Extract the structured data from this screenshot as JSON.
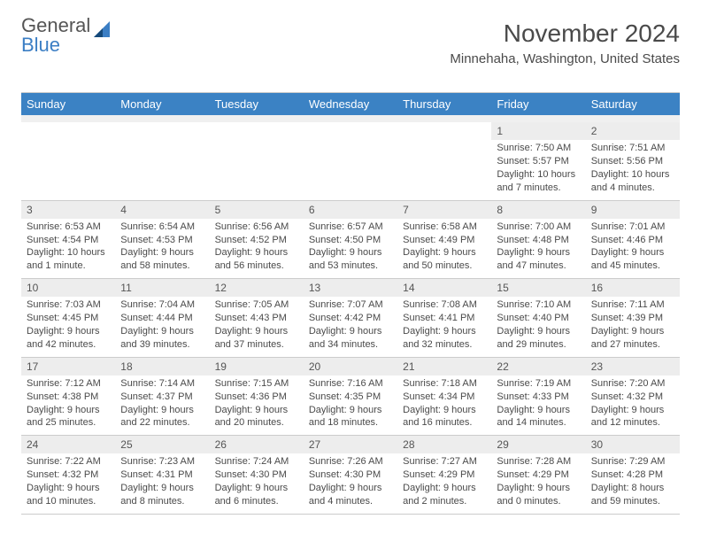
{
  "logo": {
    "word1": "General",
    "word2": "Blue"
  },
  "header": {
    "title": "November 2024",
    "location": "Minnehaha, Washington, United States"
  },
  "colors": {
    "header_bg": "#3b82c4",
    "header_text": "#ffffff",
    "daynum_bg": "#ededed",
    "border": "#cccccc",
    "text": "#4a4a4a",
    "logo_gray": "#555555",
    "logo_blue": "#3b7ec4"
  },
  "weekdays": [
    "Sunday",
    "Monday",
    "Tuesday",
    "Wednesday",
    "Thursday",
    "Friday",
    "Saturday"
  ],
  "weeks": [
    [
      null,
      null,
      null,
      null,
      null,
      {
        "n": "1",
        "sr": "7:50 AM",
        "ss": "5:57 PM",
        "dl": "10 hours and 7 minutes."
      },
      {
        "n": "2",
        "sr": "7:51 AM",
        "ss": "5:56 PM",
        "dl": "10 hours and 4 minutes."
      }
    ],
    [
      {
        "n": "3",
        "sr": "6:53 AM",
        "ss": "4:54 PM",
        "dl": "10 hours and 1 minute."
      },
      {
        "n": "4",
        "sr": "6:54 AM",
        "ss": "4:53 PM",
        "dl": "9 hours and 58 minutes."
      },
      {
        "n": "5",
        "sr": "6:56 AM",
        "ss": "4:52 PM",
        "dl": "9 hours and 56 minutes."
      },
      {
        "n": "6",
        "sr": "6:57 AM",
        "ss": "4:50 PM",
        "dl": "9 hours and 53 minutes."
      },
      {
        "n": "7",
        "sr": "6:58 AM",
        "ss": "4:49 PM",
        "dl": "9 hours and 50 minutes."
      },
      {
        "n": "8",
        "sr": "7:00 AM",
        "ss": "4:48 PM",
        "dl": "9 hours and 47 minutes."
      },
      {
        "n": "9",
        "sr": "7:01 AM",
        "ss": "4:46 PM",
        "dl": "9 hours and 45 minutes."
      }
    ],
    [
      {
        "n": "10",
        "sr": "7:03 AM",
        "ss": "4:45 PM",
        "dl": "9 hours and 42 minutes."
      },
      {
        "n": "11",
        "sr": "7:04 AM",
        "ss": "4:44 PM",
        "dl": "9 hours and 39 minutes."
      },
      {
        "n": "12",
        "sr": "7:05 AM",
        "ss": "4:43 PM",
        "dl": "9 hours and 37 minutes."
      },
      {
        "n": "13",
        "sr": "7:07 AM",
        "ss": "4:42 PM",
        "dl": "9 hours and 34 minutes."
      },
      {
        "n": "14",
        "sr": "7:08 AM",
        "ss": "4:41 PM",
        "dl": "9 hours and 32 minutes."
      },
      {
        "n": "15",
        "sr": "7:10 AM",
        "ss": "4:40 PM",
        "dl": "9 hours and 29 minutes."
      },
      {
        "n": "16",
        "sr": "7:11 AM",
        "ss": "4:39 PM",
        "dl": "9 hours and 27 minutes."
      }
    ],
    [
      {
        "n": "17",
        "sr": "7:12 AM",
        "ss": "4:38 PM",
        "dl": "9 hours and 25 minutes."
      },
      {
        "n": "18",
        "sr": "7:14 AM",
        "ss": "4:37 PM",
        "dl": "9 hours and 22 minutes."
      },
      {
        "n": "19",
        "sr": "7:15 AM",
        "ss": "4:36 PM",
        "dl": "9 hours and 20 minutes."
      },
      {
        "n": "20",
        "sr": "7:16 AM",
        "ss": "4:35 PM",
        "dl": "9 hours and 18 minutes."
      },
      {
        "n": "21",
        "sr": "7:18 AM",
        "ss": "4:34 PM",
        "dl": "9 hours and 16 minutes."
      },
      {
        "n": "22",
        "sr": "7:19 AM",
        "ss": "4:33 PM",
        "dl": "9 hours and 14 minutes."
      },
      {
        "n": "23",
        "sr": "7:20 AM",
        "ss": "4:32 PM",
        "dl": "9 hours and 12 minutes."
      }
    ],
    [
      {
        "n": "24",
        "sr": "7:22 AM",
        "ss": "4:32 PM",
        "dl": "9 hours and 10 minutes."
      },
      {
        "n": "25",
        "sr": "7:23 AM",
        "ss": "4:31 PM",
        "dl": "9 hours and 8 minutes."
      },
      {
        "n": "26",
        "sr": "7:24 AM",
        "ss": "4:30 PM",
        "dl": "9 hours and 6 minutes."
      },
      {
        "n": "27",
        "sr": "7:26 AM",
        "ss": "4:30 PM",
        "dl": "9 hours and 4 minutes."
      },
      {
        "n": "28",
        "sr": "7:27 AM",
        "ss": "4:29 PM",
        "dl": "9 hours and 2 minutes."
      },
      {
        "n": "29",
        "sr": "7:28 AM",
        "ss": "4:29 PM",
        "dl": "9 hours and 0 minutes."
      },
      {
        "n": "30",
        "sr": "7:29 AM",
        "ss": "4:28 PM",
        "dl": "8 hours and 59 minutes."
      }
    ]
  ],
  "labels": {
    "sunrise": "Sunrise: ",
    "sunset": "Sunset: ",
    "daylight": "Daylight: "
  }
}
